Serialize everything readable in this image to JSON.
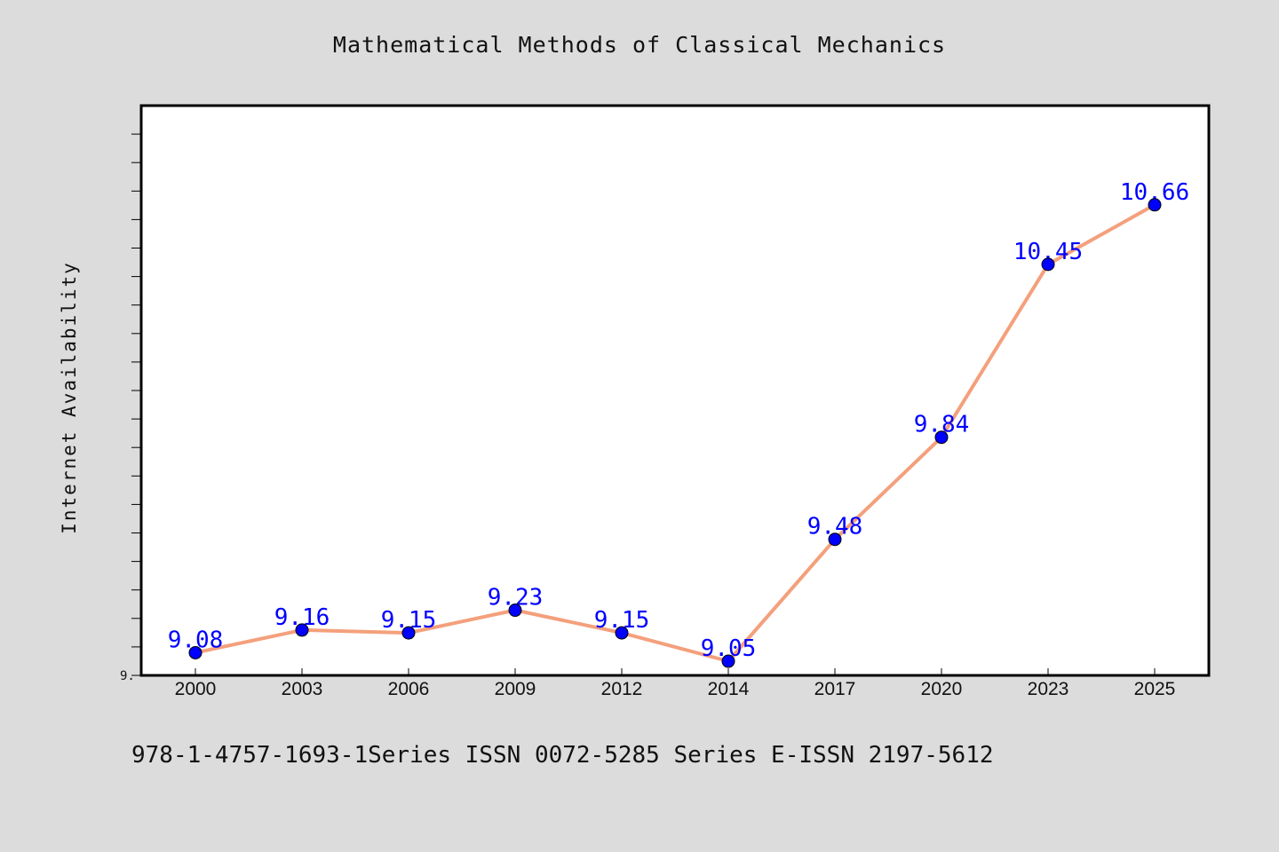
{
  "chart_data": {
    "type": "line",
    "title": "Mathematical Methods of Classical Mechanics",
    "xlabel": "",
    "ylabel": "Internet Availability",
    "categories": [
      "2000",
      "2003",
      "2006",
      "2009",
      "2012",
      "2014",
      "2017",
      "2020",
      "2023",
      "2025"
    ],
    "series": [
      {
        "values": [
          9.08,
          9.16,
          9.15,
          9.23,
          9.15,
          9.05,
          9.48,
          9.84,
          10.45,
          10.66
        ],
        "color": "#f4a07c",
        "marker_color": "#0000ff"
      }
    ],
    "ylim": [
      9.0,
      11.0
    ],
    "ytick_label": "9.",
    "grid": false,
    "legend": "none"
  },
  "footer": {
    "text": "978-1-4757-1693-1Series ISSN 0072-5285 Series E-ISSN 2197-5612"
  }
}
